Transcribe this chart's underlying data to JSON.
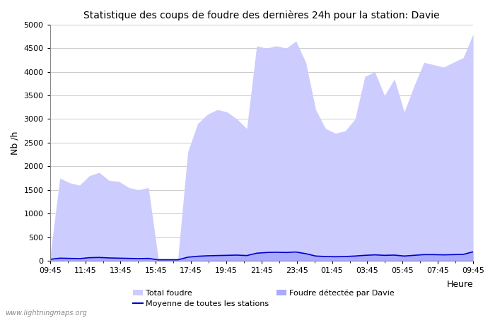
{
  "title": "Statistique des coups de foudre des dernières 24h pour la station: Davie",
  "ylabel": "Nb /h",
  "xlabel": "Heure",
  "watermark": "www.lightningmaps.org",
  "ylim": [
    0,
    5000
  ],
  "yticks": [
    0,
    500,
    1000,
    1500,
    2000,
    2500,
    3000,
    3500,
    4000,
    4500,
    5000
  ],
  "x_labels_show": [
    "09:45",
    "11:45",
    "13:45",
    "15:45",
    "17:45",
    "19:45",
    "21:45",
    "23:45",
    "01:45",
    "03:45",
    "05:45",
    "07:45",
    "09:45"
  ],
  "total_foudre_color": "#ccccff",
  "davie_color": "#aaaaff",
  "moyenne_color": "#0000cc",
  "bg_color": "#ffffff",
  "plot_bg_color": "#ffffff",
  "grid_color": "#cccccc",
  "total_foudre": [
    70,
    1750,
    1650,
    1600,
    1800,
    1870,
    1700,
    1680,
    1550,
    1500,
    1550,
    50,
    50,
    50,
    2300,
    2900,
    3100,
    3200,
    3150,
    3000,
    2800,
    4550,
    4500,
    4550,
    4500,
    4650,
    4200,
    3200,
    2800,
    2700,
    2750,
    3000,
    3900,
    4000,
    3500,
    3850,
    3150,
    3700,
    4200,
    4150,
    4100,
    4200,
    4300,
    4800
  ],
  "davie_foudre": [
    30,
    55,
    50,
    45,
    65,
    70,
    60,
    55,
    50,
    45,
    50,
    20,
    20,
    20,
    75,
    95,
    105,
    110,
    115,
    120,
    110,
    160,
    175,
    180,
    175,
    185,
    150,
    100,
    90,
    85,
    90,
    100,
    115,
    125,
    115,
    120,
    100,
    115,
    130,
    130,
    125,
    130,
    135,
    190
  ],
  "moyenne": [
    30,
    55,
    50,
    45,
    65,
    70,
    60,
    55,
    50,
    45,
    50,
    20,
    20,
    20,
    75,
    95,
    105,
    110,
    115,
    120,
    110,
    160,
    175,
    180,
    175,
    185,
    150,
    100,
    90,
    85,
    90,
    100,
    115,
    125,
    115,
    120,
    100,
    115,
    130,
    130,
    125,
    130,
    135,
    190
  ],
  "legend_total_label": "Total foudre",
  "legend_davie_label": "Foudre détectée par Davie",
  "legend_moyenne_label": "Moyenne de toutes les stations",
  "title_fontsize": 10,
  "axis_fontsize": 9,
  "tick_fontsize": 8,
  "figwidth": 7.0,
  "figheight": 4.5,
  "dpi": 100
}
